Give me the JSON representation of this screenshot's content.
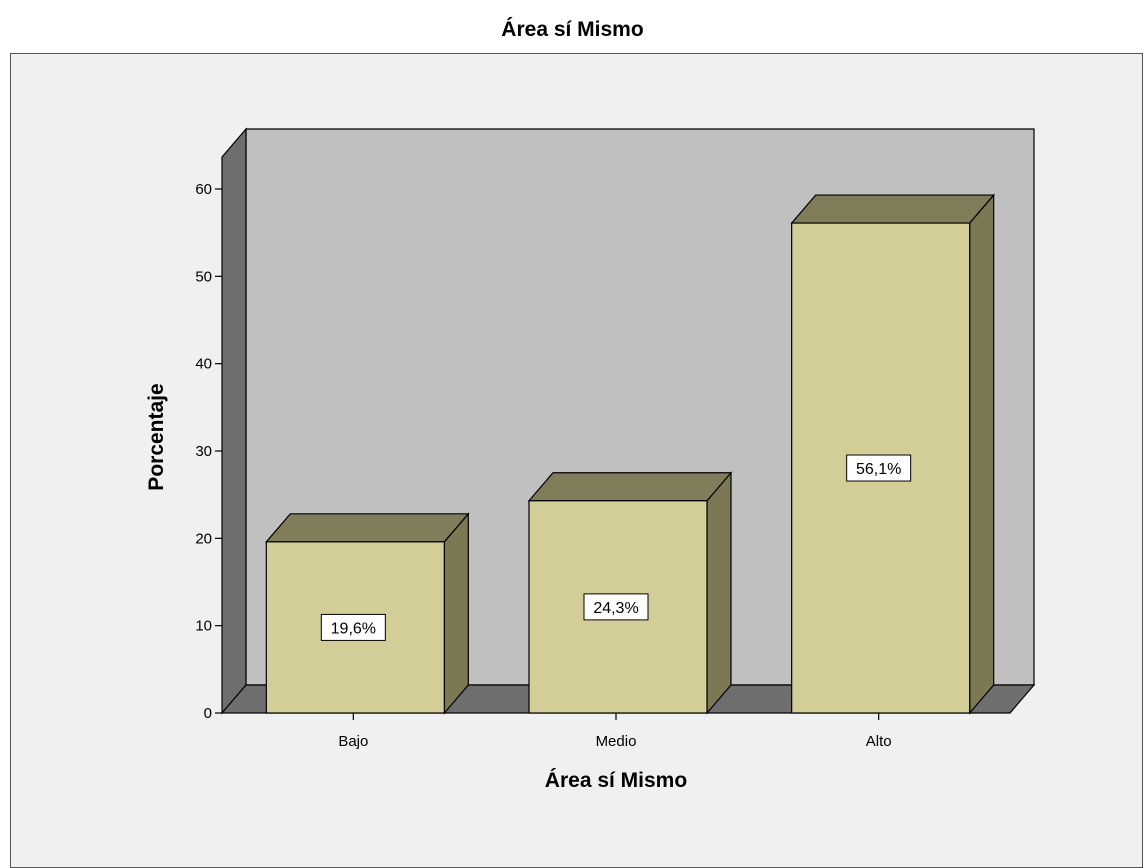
{
  "chart_data": {
    "type": "bar",
    "title": "Área sí Mismo",
    "xlabel": "Área sí Mismo",
    "ylabel": "Porcentaje",
    "categories": [
      "Bajo",
      "Medio",
      "Alto"
    ],
    "values": [
      19.6,
      24.3,
      56.1
    ],
    "value_labels": [
      "19,6%",
      "24,3%",
      "56,1%"
    ],
    "ylim": [
      0,
      60
    ],
    "yticks": [
      0,
      10,
      20,
      30,
      40,
      50,
      60
    ],
    "grid": false,
    "style": "3d",
    "colors": {
      "bar_front": "#d3ce98",
      "bar_top": "#807e5a",
      "bar_side": "#7b7853",
      "back_wall": "#c0c0c0",
      "side_wall": "#6e6e6e",
      "floor": "#6e6e6e",
      "frame_bg": "#f0f0f0"
    }
  }
}
